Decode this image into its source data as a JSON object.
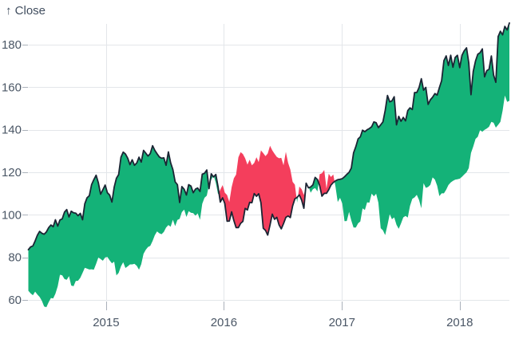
{
  "chart_data": {
    "type": "area",
    "variant": "difference",
    "title": "",
    "ylabel": "↑ Close",
    "xlabel": "",
    "series_name": "Close",
    "x_ticks": [
      "2015",
      "2016",
      "2017",
      "2018"
    ],
    "y_ticks": [
      60,
      80,
      100,
      120,
      140,
      160,
      180
    ],
    "ylim": [
      60,
      190
    ],
    "x_range": [
      "2014-05",
      "2018-06"
    ],
    "grid": true,
    "legend": "none",
    "start_date": "2013-05-06",
    "step_days": 7,
    "lag_weeks": 52,
    "weekly_close": [
      64.3,
      63.1,
      62.2,
      63.9,
      62.5,
      61.4,
      59.5,
      56.9,
      56.6,
      59.0,
      60.9,
      60.7,
      62.9,
      66.4,
      71.8,
      71.6,
      69.8,
      69.5,
      71.2,
      66.8,
      66.4,
      68.9,
      69.0,
      70.4,
      72.7,
      75.1,
      74.7,
      74.3,
      74.4,
      74.2,
      77.0,
      80.0,
      79.2,
      78.4,
      80.0,
      80.2,
      78.6,
      77.2,
      78.0,
      71.5,
      72.7,
      75.8,
      77.7,
      75.0,
      75.8,
      76.7,
      76.7,
      77.0,
      76.0,
      74.2,
      76.8,
      81.7,
      83.6,
      84.9,
      85.4,
      87.7,
      90.4,
      92.2,
      91.3,
      90.9,
      92.0,
      94.0,
      95.2,
      94.4,
      97.7,
      94.7,
      97.6,
      98.1,
      101.3,
      102.5,
      99.0,
      101.7,
      101.0,
      100.8,
      99.6,
      100.7,
      97.7,
      105.2,
      108.0,
      109.0,
      114.2,
      116.5,
      118.6,
      115.0,
      109.7,
      111.8,
      114.0,
      110.4,
      109.3,
      106.0,
      113.0,
      117.2,
      118.9,
      127.1,
      129.5,
      128.6,
      126.6,
      123.6,
      125.9,
      123.3,
      124.4,
      127.1,
      124.8,
      130.3,
      129.0,
      127.6,
      128.8,
      132.5,
      130.3,
      128.7,
      127.2,
      126.6,
      126.8,
      123.3,
      129.6,
      124.5,
      121.3,
      115.5,
      114.2,
      105.8,
      113.3,
      112.0,
      109.3,
      114.2,
      113.5,
      110.4,
      112.1,
      112.6,
      111.0,
      119.1,
      119.5,
      121.1,
      112.3,
      119.3,
      117.8,
      119.0,
      113.2,
      106.0,
      108.0,
      105.3,
      97.0,
      97.1,
      101.4,
      97.3,
      94.0,
      94.0,
      96.0,
      96.9,
      103.0,
      102.3,
      105.9,
      105.7,
      110.0,
      108.7,
      109.9,
      105.7,
      93.7,
      92.7,
      90.5,
      95.2,
      100.3,
      97.9,
      98.8,
      95.3,
      93.4,
      95.9,
      98.8,
      99.5,
      98.7,
      104.2,
      107.5,
      108.2,
      109.4,
      106.9,
      103.1,
      114.9,
      112.7,
      113.1,
      114.1,
      117.6,
      116.6,
      113.7,
      108.8,
      110.1,
      110.1,
      111.8,
      114.0,
      115.2,
      116.0,
      116.5,
      116.7,
      117.0,
      117.9,
      119.0,
      120.0,
      122.0,
      129.1,
      132.1,
      135.7,
      136.7,
      139.8,
      139.1,
      140.0,
      140.6,
      141.4,
      143.7,
      143.3,
      141.0,
      142.3,
      143.7,
      149.0,
      156.1,
      153.1,
      153.6,
      155.5,
      142.3,
      146.3,
      144.0,
      145.8,
      144.2,
      149.0,
      150.3,
      149.5,
      157.5,
      157.5,
      159.9,
      164.0,
      158.6,
      159.9,
      151.9,
      154.1,
      155.3,
      157.0,
      156.3,
      159.8,
      163.1,
      172.5,
      174.7,
      170.2,
      175.0,
      169.4,
      174.0,
      175.0,
      169.2,
      175.0,
      177.1,
      178.5,
      171.5,
      156.5,
      167.4,
      172.4,
      175.5,
      176.2,
      178.0,
      164.9,
      167.8,
      168.4,
      174.7,
      165.7,
      162.3,
      183.8,
      186.3,
      184.6,
      188.6,
      186.9,
      190.2
    ],
    "colors": {
      "positive_fill": "#14B278",
      "negative_fill": "#F43E5C",
      "line": "#1B2534",
      "grid": "#E3E6EA",
      "tick": "#AAB1BA",
      "text": "#4B5766",
      "background": "#FFFFFF"
    }
  }
}
